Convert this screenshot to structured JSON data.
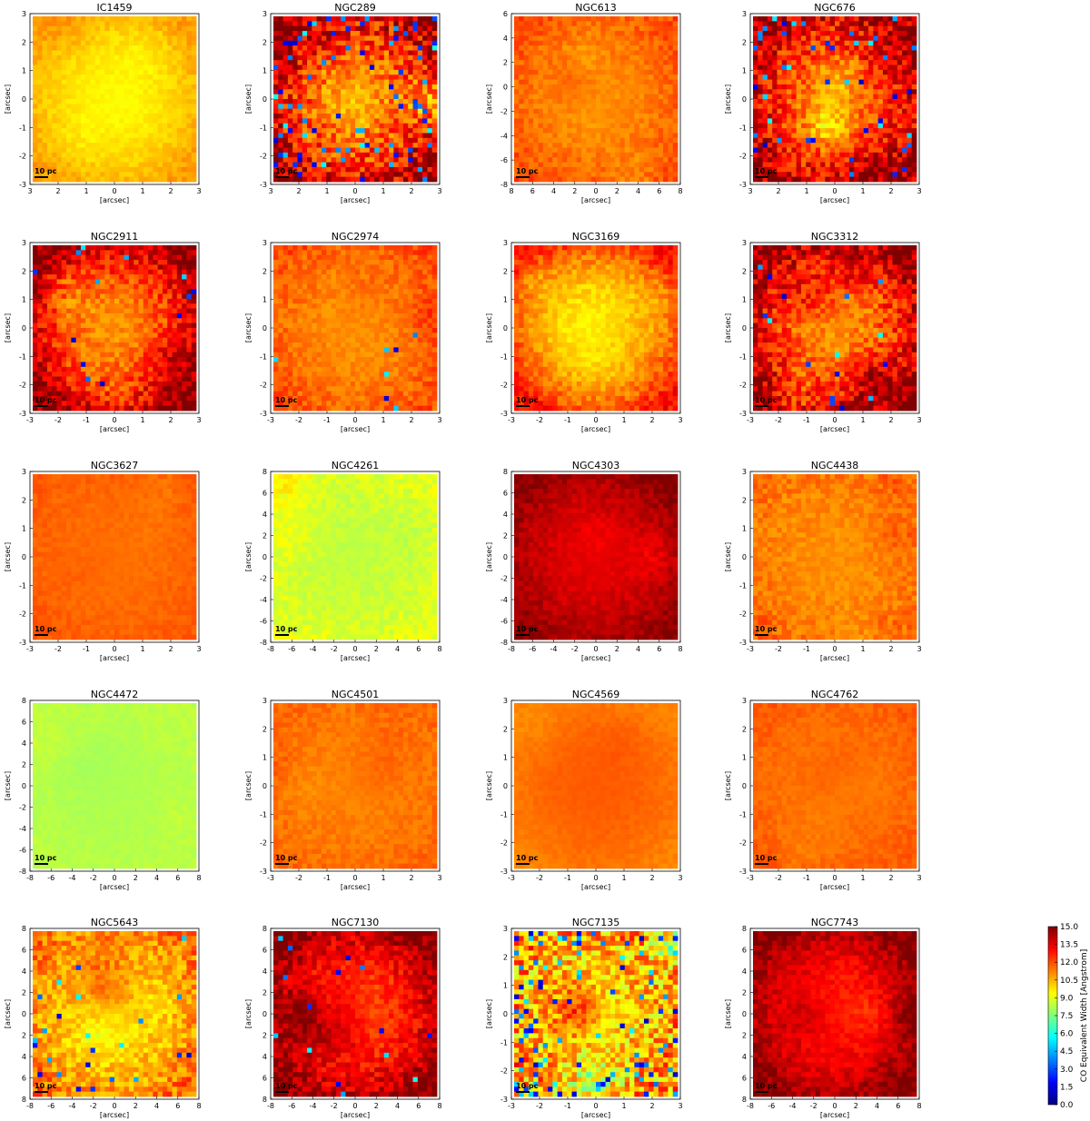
{
  "chart_data": {
    "type": "heatmap",
    "layout": {
      "rows": 5,
      "cols": 4
    },
    "axis_label": "[arcsec]",
    "scale_bar_label": "10 pc",
    "colormap": "jet",
    "colors": [
      "#00007f",
      "#0000ff",
      "#007fff",
      "#00ffff",
      "#7fff7f",
      "#ffff00",
      "#ff7f00",
      "#ff0000",
      "#7f0000"
    ],
    "colorbar": {
      "label": "CO Equivalent Width [Angstrom]",
      "range": [
        0,
        15
      ],
      "ticks": [
        "0.0",
        "1.5",
        "3.0",
        "4.5",
        "6.0",
        "7.5",
        "9.0",
        "10.5",
        "12.0",
        "13.5",
        "15.0"
      ]
    },
    "panels": [
      {
        "title": "IC1459",
        "xlim": [
          3,
          -3
        ],
        "ylim": [
          -3,
          3
        ],
        "xticks": [
          "3",
          "2",
          "1",
          "0",
          "1",
          "2",
          "3"
        ],
        "yticks": [
          "3",
          "2",
          "1",
          "0",
          "-1",
          "-2",
          "-3"
        ],
        "level": 9.5,
        "edge": 10.8,
        "noise": 0.6,
        "blue": 0.0
      },
      {
        "title": "NGC289",
        "xlim": [
          -3,
          3
        ],
        "ylim": [
          -3,
          3
        ],
        "xticks": [
          "3",
          "2",
          "1",
          "0",
          "1",
          "2",
          "3"
        ],
        "yticks": [
          "3",
          "2",
          "1",
          "0",
          "-1",
          "-2",
          "-3"
        ],
        "level": 11.0,
        "edge": 14.5,
        "noise": 3.2,
        "blue": 0.12
      },
      {
        "title": "NGC613",
        "xlim": [
          -8,
          8
        ],
        "ylim": [
          -8,
          8
        ],
        "xticks": [
          "8",
          "6",
          "4",
          "2",
          "0",
          "2",
          "4",
          "6",
          "8"
        ],
        "yticks": [
          "6",
          "4",
          "2",
          "0",
          "-2",
          "-4",
          "-6",
          "-8"
        ],
        "level": 11.0,
        "edge": 12.0,
        "noise": 0.9,
        "blue": 0.0
      },
      {
        "title": "NGC676",
        "xlim": [
          -3,
          3
        ],
        "ylim": [
          -3,
          3
        ],
        "xticks": [
          "3",
          "2",
          "1",
          "0",
          "1",
          "2",
          "3"
        ],
        "yticks": [
          "3",
          "2",
          "1",
          "0",
          "-1",
          "-2",
          "-3"
        ],
        "level": 11.5,
        "edge": 14.5,
        "noise": 2.8,
        "blue": 0.05
      },
      {
        "title": "NGC2911",
        "xlim": [
          -3,
          3
        ],
        "ylim": [
          -3,
          3
        ],
        "xticks": [
          "-3",
          "-2",
          "-1",
          "0",
          "1",
          "2",
          "3"
        ],
        "yticks": [
          "3",
          "2",
          "1",
          "0",
          "-1",
          "-2",
          "-3"
        ],
        "level": 11.0,
        "edge": 15.0,
        "noise": 2.2,
        "blue": 0.02
      },
      {
        "title": "NGC2974",
        "xlim": [
          -3,
          3
        ],
        "ylim": [
          -3,
          3
        ],
        "xticks": [
          "-3",
          "-2",
          "-1",
          "0",
          "1",
          "2",
          "3"
        ],
        "yticks": [
          "3",
          "2",
          "1",
          "0",
          "-1",
          "-2",
          "-3"
        ],
        "level": 11.0,
        "edge": 12.0,
        "noise": 1.0,
        "blue": 0.01
      },
      {
        "title": "NGC3169",
        "xlim": [
          -3,
          3
        ],
        "ylim": [
          -3,
          3
        ],
        "xticks": [
          "-3",
          "-2",
          "-1",
          "0",
          "1",
          "2",
          "3"
        ],
        "yticks": [
          "3",
          "2",
          "1",
          "0",
          "-1",
          "-2",
          "-3"
        ],
        "level": 9.5,
        "edge": 13.0,
        "noise": 1.2,
        "blue": 0.0
      },
      {
        "title": "NGC3312",
        "xlim": [
          -3,
          3
        ],
        "ylim": [
          -3,
          3
        ],
        "xticks": [
          "-3",
          "-2",
          "-1",
          "0",
          "1",
          "2",
          "3"
        ],
        "yticks": [
          "3",
          "2",
          "1",
          "0",
          "-1",
          "-2",
          "-3"
        ],
        "level": 11.0,
        "edge": 14.8,
        "noise": 2.6,
        "blue": 0.02
      },
      {
        "title": "NGC3627",
        "xlim": [
          -3,
          3
        ],
        "ylim": [
          -3,
          3
        ],
        "xticks": [
          "-3",
          "-2",
          "-1",
          "0",
          "1",
          "2",
          "3"
        ],
        "yticks": [
          "3",
          "2",
          "1",
          "0",
          "-1",
          "-2",
          "-3"
        ],
        "level": 11.5,
        "edge": 11.8,
        "noise": 0.4,
        "blue": 0.0
      },
      {
        "title": "NGC4261",
        "xlim": [
          -8,
          8
        ],
        "ylim": [
          -8,
          8
        ],
        "xticks": [
          "-8",
          "-6",
          "-4",
          "-2",
          "0",
          "2",
          "4",
          "6",
          "8"
        ],
        "yticks": [
          "8",
          "6",
          "4",
          "2",
          "0",
          "-2",
          "-4",
          "-6",
          "-8"
        ],
        "level": 8.5,
        "edge": 9.0,
        "noise": 0.7,
        "blue": 0.0
      },
      {
        "title": "NGC4303",
        "xlim": [
          -8,
          8
        ],
        "ylim": [
          -8,
          8
        ],
        "xticks": [
          "-8",
          "-6",
          "-4",
          "-2",
          "0",
          "2",
          "4",
          "6",
          "8"
        ],
        "yticks": [
          "8",
          "6",
          "4",
          "2",
          "0",
          "-2",
          "-4",
          "-6",
          "-8"
        ],
        "level": 13.5,
        "edge": 14.8,
        "noise": 0.8,
        "blue": 0.0
      },
      {
        "title": "NGC4438",
        "xlim": [
          -3,
          3
        ],
        "ylim": [
          -3,
          3
        ],
        "xticks": [
          "-3",
          "-2",
          "-1",
          "0",
          "1",
          "2",
          "3"
        ],
        "yticks": [
          "3",
          "2",
          "1",
          "0",
          "-1",
          "-2",
          "-3"
        ],
        "level": 11.0,
        "edge": 11.5,
        "noise": 0.9,
        "blue": 0.0
      },
      {
        "title": "NGC4472",
        "xlim": [
          -8,
          8
        ],
        "ylim": [
          -8,
          8
        ],
        "xticks": [
          "-8",
          "-6",
          "-4",
          "-2",
          "0",
          "2",
          "4",
          "6",
          "8"
        ],
        "yticks": [
          "8",
          "6",
          "4",
          "2",
          "0",
          "-2",
          "-4",
          "-6",
          "-8"
        ],
        "level": 8.2,
        "edge": 8.4,
        "noise": 0.3,
        "blue": 0.0
      },
      {
        "title": "NGC4501",
        "xlim": [
          -3,
          3
        ],
        "ylim": [
          -3,
          3
        ],
        "xticks": [
          "-3",
          "-2",
          "-1",
          "0",
          "1",
          "2",
          "3"
        ],
        "yticks": [
          "3",
          "2",
          "1",
          "0",
          "-1",
          "-2",
          "-3"
        ],
        "level": 11.2,
        "edge": 11.6,
        "noise": 0.6,
        "blue": 0.0
      },
      {
        "title": "NGC4569",
        "xlim": [
          -3,
          3
        ],
        "ylim": [
          -3,
          3
        ],
        "xticks": [
          "-3",
          "-2",
          "-1",
          "0",
          "1",
          "2",
          "3"
        ],
        "yticks": [
          "3",
          "2",
          "1",
          "0",
          "-1",
          "-2",
          "-3"
        ],
        "level": 11.8,
        "edge": 11.2,
        "noise": 0.3,
        "blue": 0.0
      },
      {
        "title": "NGC4762",
        "xlim": [
          -3,
          3
        ],
        "ylim": [
          -3,
          3
        ],
        "xticks": [
          "-3",
          "-2",
          "-1",
          "0",
          "1",
          "2",
          "3"
        ],
        "yticks": [
          "3",
          "2",
          "1",
          "0",
          "-1",
          "-2",
          "-3"
        ],
        "level": 11.3,
        "edge": 11.8,
        "noise": 0.5,
        "blue": 0.0
      },
      {
        "title": "NGC5643",
        "xlim": [
          -8,
          8
        ],
        "ylim": [
          -8,
          8
        ],
        "xticks": [
          "-8",
          "-6",
          "-4",
          "-2",
          "0",
          "2",
          "4",
          "6",
          "8"
        ],
        "yticks": [
          "8",
          "6",
          "4",
          "2",
          "0",
          "2",
          "4",
          "6",
          "8"
        ],
        "level": 9.8,
        "edge": 11.5,
        "noise": 1.8,
        "blue": 0.03
      },
      {
        "title": "NGC7130",
        "xlim": [
          -8,
          8
        ],
        "ylim": [
          -8,
          8
        ],
        "xticks": [
          "-8",
          "-6",
          "-4",
          "-2",
          "0",
          "2",
          "4",
          "6",
          "8"
        ],
        "yticks": [
          "8",
          "6",
          "4",
          "2",
          "0",
          "2",
          "4",
          "6",
          "8"
        ],
        "level": 12.0,
        "edge": 15.0,
        "noise": 1.8,
        "blue": 0.02
      },
      {
        "title": "NGC7135",
        "xlim": [
          -3,
          3
        ],
        "ylim": [
          -3,
          3
        ],
        "xticks": [
          "-3",
          "-2",
          "-1",
          "0",
          "1",
          "2",
          "3"
        ],
        "yticks": [
          "3",
          "2",
          "1",
          "0",
          "-1",
          "-2",
          "-3"
        ],
        "level": 10.0,
        "edge": 11.0,
        "noise": 3.8,
        "blue": 0.15
      },
      {
        "title": "NGC7743",
        "xlim": [
          -8,
          8
        ],
        "ylim": [
          -8,
          8
        ],
        "xticks": [
          "-8",
          "-6",
          "-4",
          "-2",
          "0",
          "2",
          "4",
          "6",
          "8"
        ],
        "yticks": [
          "8",
          "6",
          "4",
          "2",
          "0",
          "2",
          "4",
          "6",
          "8"
        ],
        "level": 12.8,
        "edge": 15.0,
        "noise": 1.2,
        "blue": 0.0
      }
    ]
  }
}
